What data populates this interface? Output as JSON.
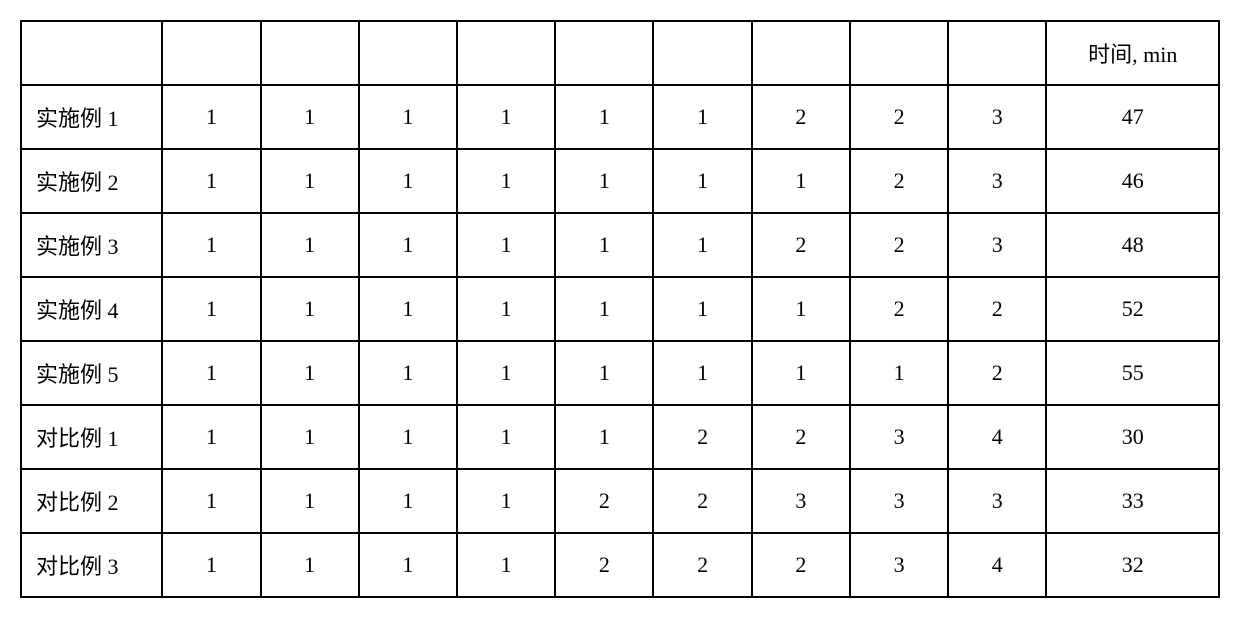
{
  "table": {
    "type": "table",
    "background_color": "#ffffff",
    "border_color": "#000000",
    "border_width": 2,
    "font_size": 22,
    "text_color": "#000000",
    "columns": [
      {
        "key": "label",
        "header": "",
        "width": 128,
        "align": "left"
      },
      {
        "key": "c1",
        "header": "",
        "width": 88,
        "align": "center"
      },
      {
        "key": "c2",
        "header": "",
        "width": 88,
        "align": "center"
      },
      {
        "key": "c3",
        "header": "",
        "width": 88,
        "align": "center"
      },
      {
        "key": "c4",
        "header": "",
        "width": 88,
        "align": "center"
      },
      {
        "key": "c5",
        "header": "",
        "width": 88,
        "align": "center"
      },
      {
        "key": "c6",
        "header": "",
        "width": 88,
        "align": "center"
      },
      {
        "key": "c7",
        "header": "",
        "width": 88,
        "align": "center"
      },
      {
        "key": "c8",
        "header": "",
        "width": 88,
        "align": "center"
      },
      {
        "key": "c9",
        "header": "",
        "width": 88,
        "align": "center"
      },
      {
        "key": "time",
        "header": "时间, min",
        "width": 168,
        "align": "center"
      }
    ],
    "header": {
      "label": "",
      "c1": "",
      "c2": "",
      "c3": "",
      "c4": "",
      "c5": "",
      "c6": "",
      "c7": "",
      "c8": "",
      "c9": "",
      "time": "时间, min"
    },
    "rows": [
      {
        "label": "实施例 1",
        "c1": "1",
        "c2": "1",
        "c3": "1",
        "c4": "1",
        "c5": "1",
        "c6": "1",
        "c7": "2",
        "c8": "2",
        "c9": "3",
        "time": "47"
      },
      {
        "label": "实施例 2",
        "c1": "1",
        "c2": "1",
        "c3": "1",
        "c4": "1",
        "c5": "1",
        "c6": "1",
        "c7": "1",
        "c8": "2",
        "c9": "3",
        "time": "46"
      },
      {
        "label": "实施例 3",
        "c1": "1",
        "c2": "1",
        "c3": "1",
        "c4": "1",
        "c5": "1",
        "c6": "1",
        "c7": "2",
        "c8": "2",
        "c9": "3",
        "time": "48"
      },
      {
        "label": "实施例 4",
        "c1": "1",
        "c2": "1",
        "c3": "1",
        "c4": "1",
        "c5": "1",
        "c6": "1",
        "c7": "1",
        "c8": "2",
        "c9": "2",
        "time": "52"
      },
      {
        "label": "实施例 5",
        "c1": "1",
        "c2": "1",
        "c3": "1",
        "c4": "1",
        "c5": "1",
        "c6": "1",
        "c7": "1",
        "c8": "1",
        "c9": "2",
        "time": "55"
      },
      {
        "label": "对比例 1",
        "c1": "1",
        "c2": "1",
        "c3": "1",
        "c4": "1",
        "c5": "1",
        "c6": "2",
        "c7": "2",
        "c8": "3",
        "c9": "4",
        "time": "30"
      },
      {
        "label": "对比例 2",
        "c1": "1",
        "c2": "1",
        "c3": "1",
        "c4": "1",
        "c5": "2",
        "c6": "2",
        "c7": "3",
        "c8": "3",
        "c9": "3",
        "time": "33"
      },
      {
        "label": "对比例 3",
        "c1": "1",
        "c2": "1",
        "c3": "1",
        "c4": "1",
        "c5": "2",
        "c6": "2",
        "c7": "2",
        "c8": "3",
        "c9": "4",
        "time": "32"
      }
    ]
  }
}
